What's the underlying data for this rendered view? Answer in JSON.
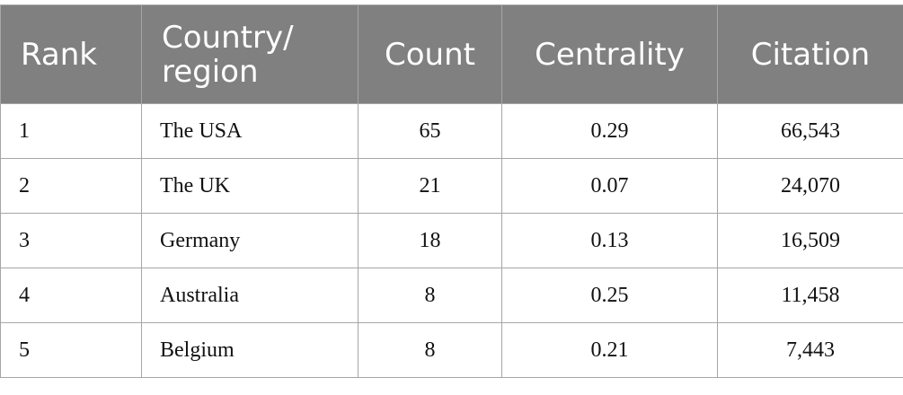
{
  "table": {
    "header": [
      "Rank",
      "Country/ region",
      "Count",
      "Centrality",
      "Citation"
    ],
    "rows": [
      [
        "1",
        "The USA",
        "65",
        "0.29",
        "66,543"
      ],
      [
        "2",
        "The UK",
        "21",
        "0.07",
        "24,070"
      ],
      [
        "3",
        "Germany",
        "18",
        "0.13",
        "16,509"
      ],
      [
        "4",
        "Australia",
        "8",
        "0.25",
        "11,458"
      ],
      [
        "5",
        "Belgium",
        "8",
        "0.21",
        "7,443"
      ]
    ]
  }
}
